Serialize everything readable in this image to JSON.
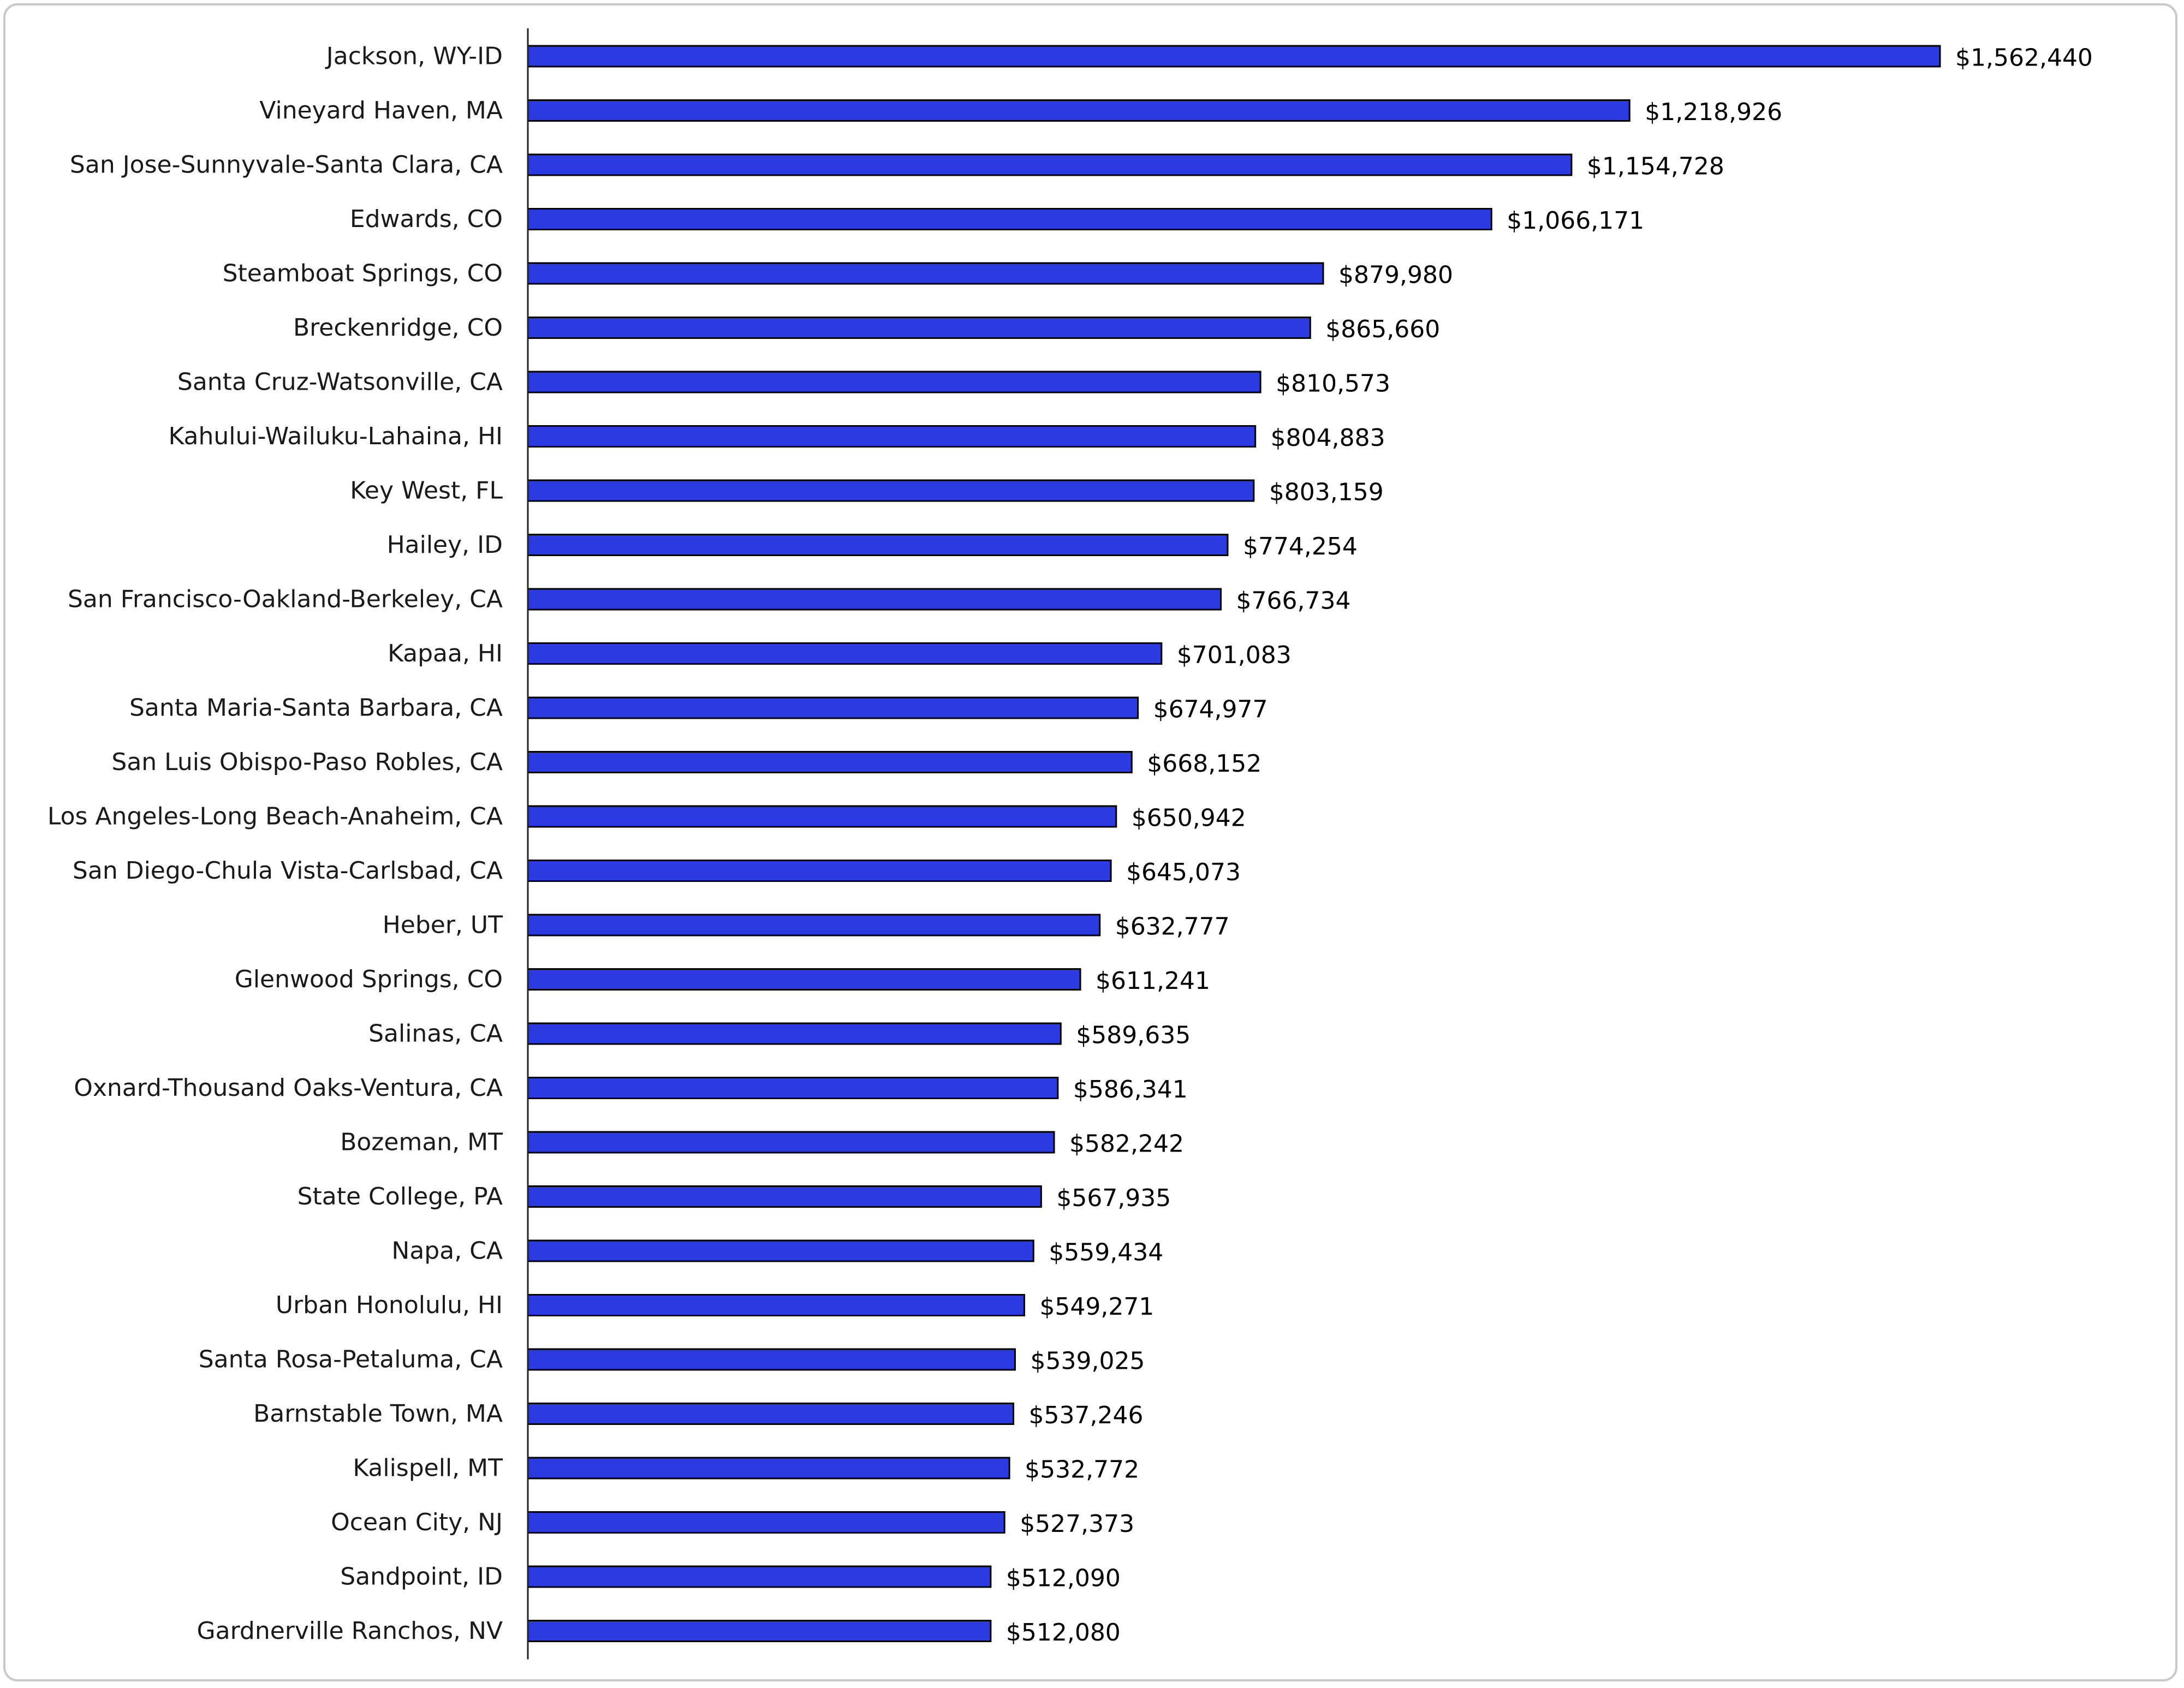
{
  "chart_data": {
    "type": "bar",
    "orientation": "horizontal",
    "title": "",
    "xlabel": "",
    "ylabel": "",
    "xlim": [
      0,
      1562440
    ],
    "grid": false,
    "legend": "none",
    "bar_color": "#2b3be0",
    "bar_outline_color": "#000000",
    "categories": [
      "Jackson, WY-ID",
      "Vineyard Haven, MA",
      "San Jose-Sunnyvale-Santa Clara, CA",
      "Edwards, CO",
      "Steamboat Springs, CO",
      "Breckenridge, CO",
      "Santa Cruz-Watsonville, CA",
      "Kahului-Wailuku-Lahaina, HI",
      "Key West, FL",
      "Hailey, ID",
      "San Francisco-Oakland-Berkeley, CA",
      "Kapaa, HI",
      "Santa Maria-Santa Barbara, CA",
      "San Luis Obispo-Paso Robles, CA",
      "Los Angeles-Long Beach-Anaheim, CA",
      "San Diego-Chula Vista-Carlsbad, CA",
      "Heber, UT",
      "Glenwood Springs, CO",
      "Salinas, CA",
      "Oxnard-Thousand Oaks-Ventura, CA",
      "Bozeman, MT",
      "State College, PA",
      "Napa, CA",
      "Urban Honolulu, HI",
      "Santa Rosa-Petaluma, CA",
      "Barnstable Town, MA",
      "Kalispell, MT",
      "Ocean City, NJ",
      "Sandpoint, ID",
      "Gardnerville Ranchos, NV"
    ],
    "values": [
      1562440,
      1218926,
      1154728,
      1066171,
      879980,
      865660,
      810573,
      804883,
      803159,
      774254,
      766734,
      701083,
      674977,
      668152,
      650942,
      645073,
      632777,
      611241,
      589635,
      586341,
      582242,
      567935,
      559434,
      549271,
      539025,
      537246,
      532772,
      527373,
      512090,
      512080
    ],
    "data_labels": [
      "$1,562,440",
      "$1,218,926",
      "$1,154,728",
      "$1,066,171",
      "$879,980",
      "$865,660",
      "$810,573",
      "$804,883",
      "$803,159",
      "$774,254",
      "$766,734",
      "$701,083",
      "$674,977",
      "$668,152",
      "$650,942",
      "$645,073",
      "$632,777",
      "$611,241",
      "$589,635",
      "$586,341",
      "$582,242",
      "$567,935",
      "$559,434",
      "$549,271",
      "$539,025",
      "$537,246",
      "$532,772",
      "$527,373",
      "$512,090",
      "$512,080"
    ]
  }
}
